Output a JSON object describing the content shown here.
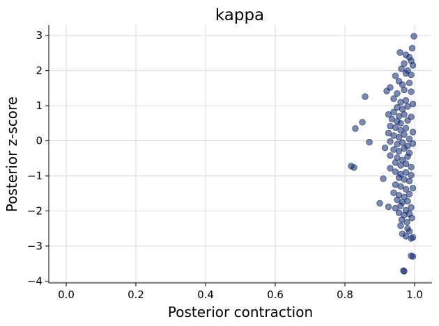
{
  "chart_data": {
    "type": "scatter",
    "title": "kappa",
    "xlabel": "Posterior contraction",
    "ylabel": "Posterior z-score",
    "xlim": [
      -0.05,
      1.05
    ],
    "ylim": [
      -4.05,
      3.3
    ],
    "xticks": [
      0.0,
      0.2,
      0.4,
      0.6,
      0.8,
      1.0
    ],
    "xtick_labels": [
      "0.0",
      "0.2",
      "0.4",
      "0.6",
      "0.8",
      "1.0"
    ],
    "yticks": [
      -4,
      -3,
      -2,
      -1,
      0,
      1,
      2,
      3
    ],
    "ytick_labels": [
      "−4",
      "−3",
      "−2",
      "−1",
      "0",
      "1",
      "2",
      "3"
    ],
    "grid": true,
    "point_color": "#132a6e",
    "point_alpha": 0.55,
    "series": [
      {
        "points": [
          [
            0.998,
            2.98
          ],
          [
            0.993,
            2.64
          ],
          [
            0.958,
            2.52
          ],
          [
            0.975,
            2.45
          ],
          [
            0.985,
            2.38
          ],
          [
            0.99,
            2.28
          ],
          [
            0.97,
            2.2
          ],
          [
            0.995,
            2.15
          ],
          [
            0.962,
            2.05
          ],
          [
            0.98,
            2.0
          ],
          [
            0.945,
            1.85
          ],
          [
            0.975,
            1.92
          ],
          [
            0.99,
            1.88
          ],
          [
            0.955,
            1.7
          ],
          [
            0.965,
            1.6
          ],
          [
            0.985,
            1.65
          ],
          [
            0.93,
            1.52
          ],
          [
            0.92,
            1.42
          ],
          [
            0.95,
            1.35
          ],
          [
            0.97,
            1.45
          ],
          [
            0.99,
            1.4
          ],
          [
            0.858,
            1.26
          ],
          [
            0.94,
            1.2
          ],
          [
            0.96,
            1.1
          ],
          [
            0.975,
            1.15
          ],
          [
            0.995,
            1.05
          ],
          [
            0.95,
            0.95
          ],
          [
            0.965,
            0.9
          ],
          [
            0.98,
            0.98
          ],
          [
            0.94,
            0.82
          ],
          [
            0.925,
            0.75
          ],
          [
            0.955,
            0.7
          ],
          [
            0.97,
            0.75
          ],
          [
            0.99,
            0.68
          ],
          [
            0.935,
            0.62
          ],
          [
            0.95,
            0.55
          ],
          [
            0.96,
            0.5
          ],
          [
            0.98,
            0.58
          ],
          [
            0.85,
            0.53
          ],
          [
            0.83,
            0.35
          ],
          [
            0.93,
            0.42
          ],
          [
            0.945,
            0.38
          ],
          [
            0.96,
            0.3
          ],
          [
            0.975,
            0.36
          ],
          [
            0.995,
            0.25
          ],
          [
            0.925,
            0.22
          ],
          [
            0.94,
            0.15
          ],
          [
            0.955,
            0.1
          ],
          [
            0.97,
            0.18
          ],
          [
            0.985,
            0.05
          ],
          [
            0.87,
            -0.04
          ],
          [
            0.93,
            -0.02
          ],
          [
            0.95,
            -0.1
          ],
          [
            0.965,
            -0.05
          ],
          [
            0.98,
            -0.15
          ],
          [
            0.995,
            -0.08
          ],
          [
            0.915,
            -0.2
          ],
          [
            0.94,
            -0.25
          ],
          [
            0.955,
            -0.3
          ],
          [
            0.97,
            -0.22
          ],
          [
            0.985,
            -0.35
          ],
          [
            0.93,
            -0.42
          ],
          [
            0.95,
            -0.48
          ],
          [
            0.965,
            -0.55
          ],
          [
            0.98,
            -0.45
          ],
          [
            0.945,
            -0.62
          ],
          [
            0.96,
            -0.7
          ],
          [
            0.975,
            -0.65
          ],
          [
            0.99,
            -0.75
          ],
          [
            0.818,
            -0.72
          ],
          [
            0.826,
            -0.76
          ],
          [
            0.93,
            -0.78
          ],
          [
            0.945,
            -0.88
          ],
          [
            0.96,
            -0.95
          ],
          [
            0.975,
            -0.9
          ],
          [
            0.99,
            -0.98
          ],
          [
            0.955,
            -1.05
          ],
          [
            0.97,
            -1.1
          ],
          [
            0.985,
            -1.15
          ],
          [
            0.91,
            -1.08
          ],
          [
            0.945,
            -1.25
          ],
          [
            0.96,
            -1.3
          ],
          [
            0.975,
            -1.38
          ],
          [
            0.995,
            -1.35
          ],
          [
            0.94,
            -1.48
          ],
          [
            0.955,
            -1.55
          ],
          [
            0.97,
            -1.6
          ],
          [
            0.985,
            -1.52
          ],
          [
            0.95,
            -1.68
          ],
          [
            0.965,
            -1.75
          ],
          [
            0.98,
            -1.72
          ],
          [
            0.9,
            -1.78
          ],
          [
            0.925,
            -1.88
          ],
          [
            0.945,
            -1.92
          ],
          [
            0.96,
            -1.85
          ],
          [
            0.975,
            -1.98
          ],
          [
            0.99,
            -1.9
          ],
          [
            0.955,
            -2.05
          ],
          [
            0.97,
            -2.12
          ],
          [
            0.985,
            -2.08
          ],
          [
            0.963,
            -2.25
          ],
          [
            0.978,
            -2.32
          ],
          [
            0.992,
            -2.2
          ],
          [
            0.96,
            -2.42
          ],
          [
            0.98,
            -2.5
          ],
          [
            0.965,
            -2.65
          ],
          [
            0.985,
            -2.58
          ],
          [
            0.975,
            -2.72
          ],
          [
            0.995,
            -2.75
          ],
          [
            0.99,
            -2.78
          ],
          [
            0.995,
            -3.3
          ],
          [
            0.99,
            -3.28
          ],
          [
            0.97,
            -3.72
          ],
          [
            0.968,
            -3.7
          ]
        ]
      }
    ]
  }
}
